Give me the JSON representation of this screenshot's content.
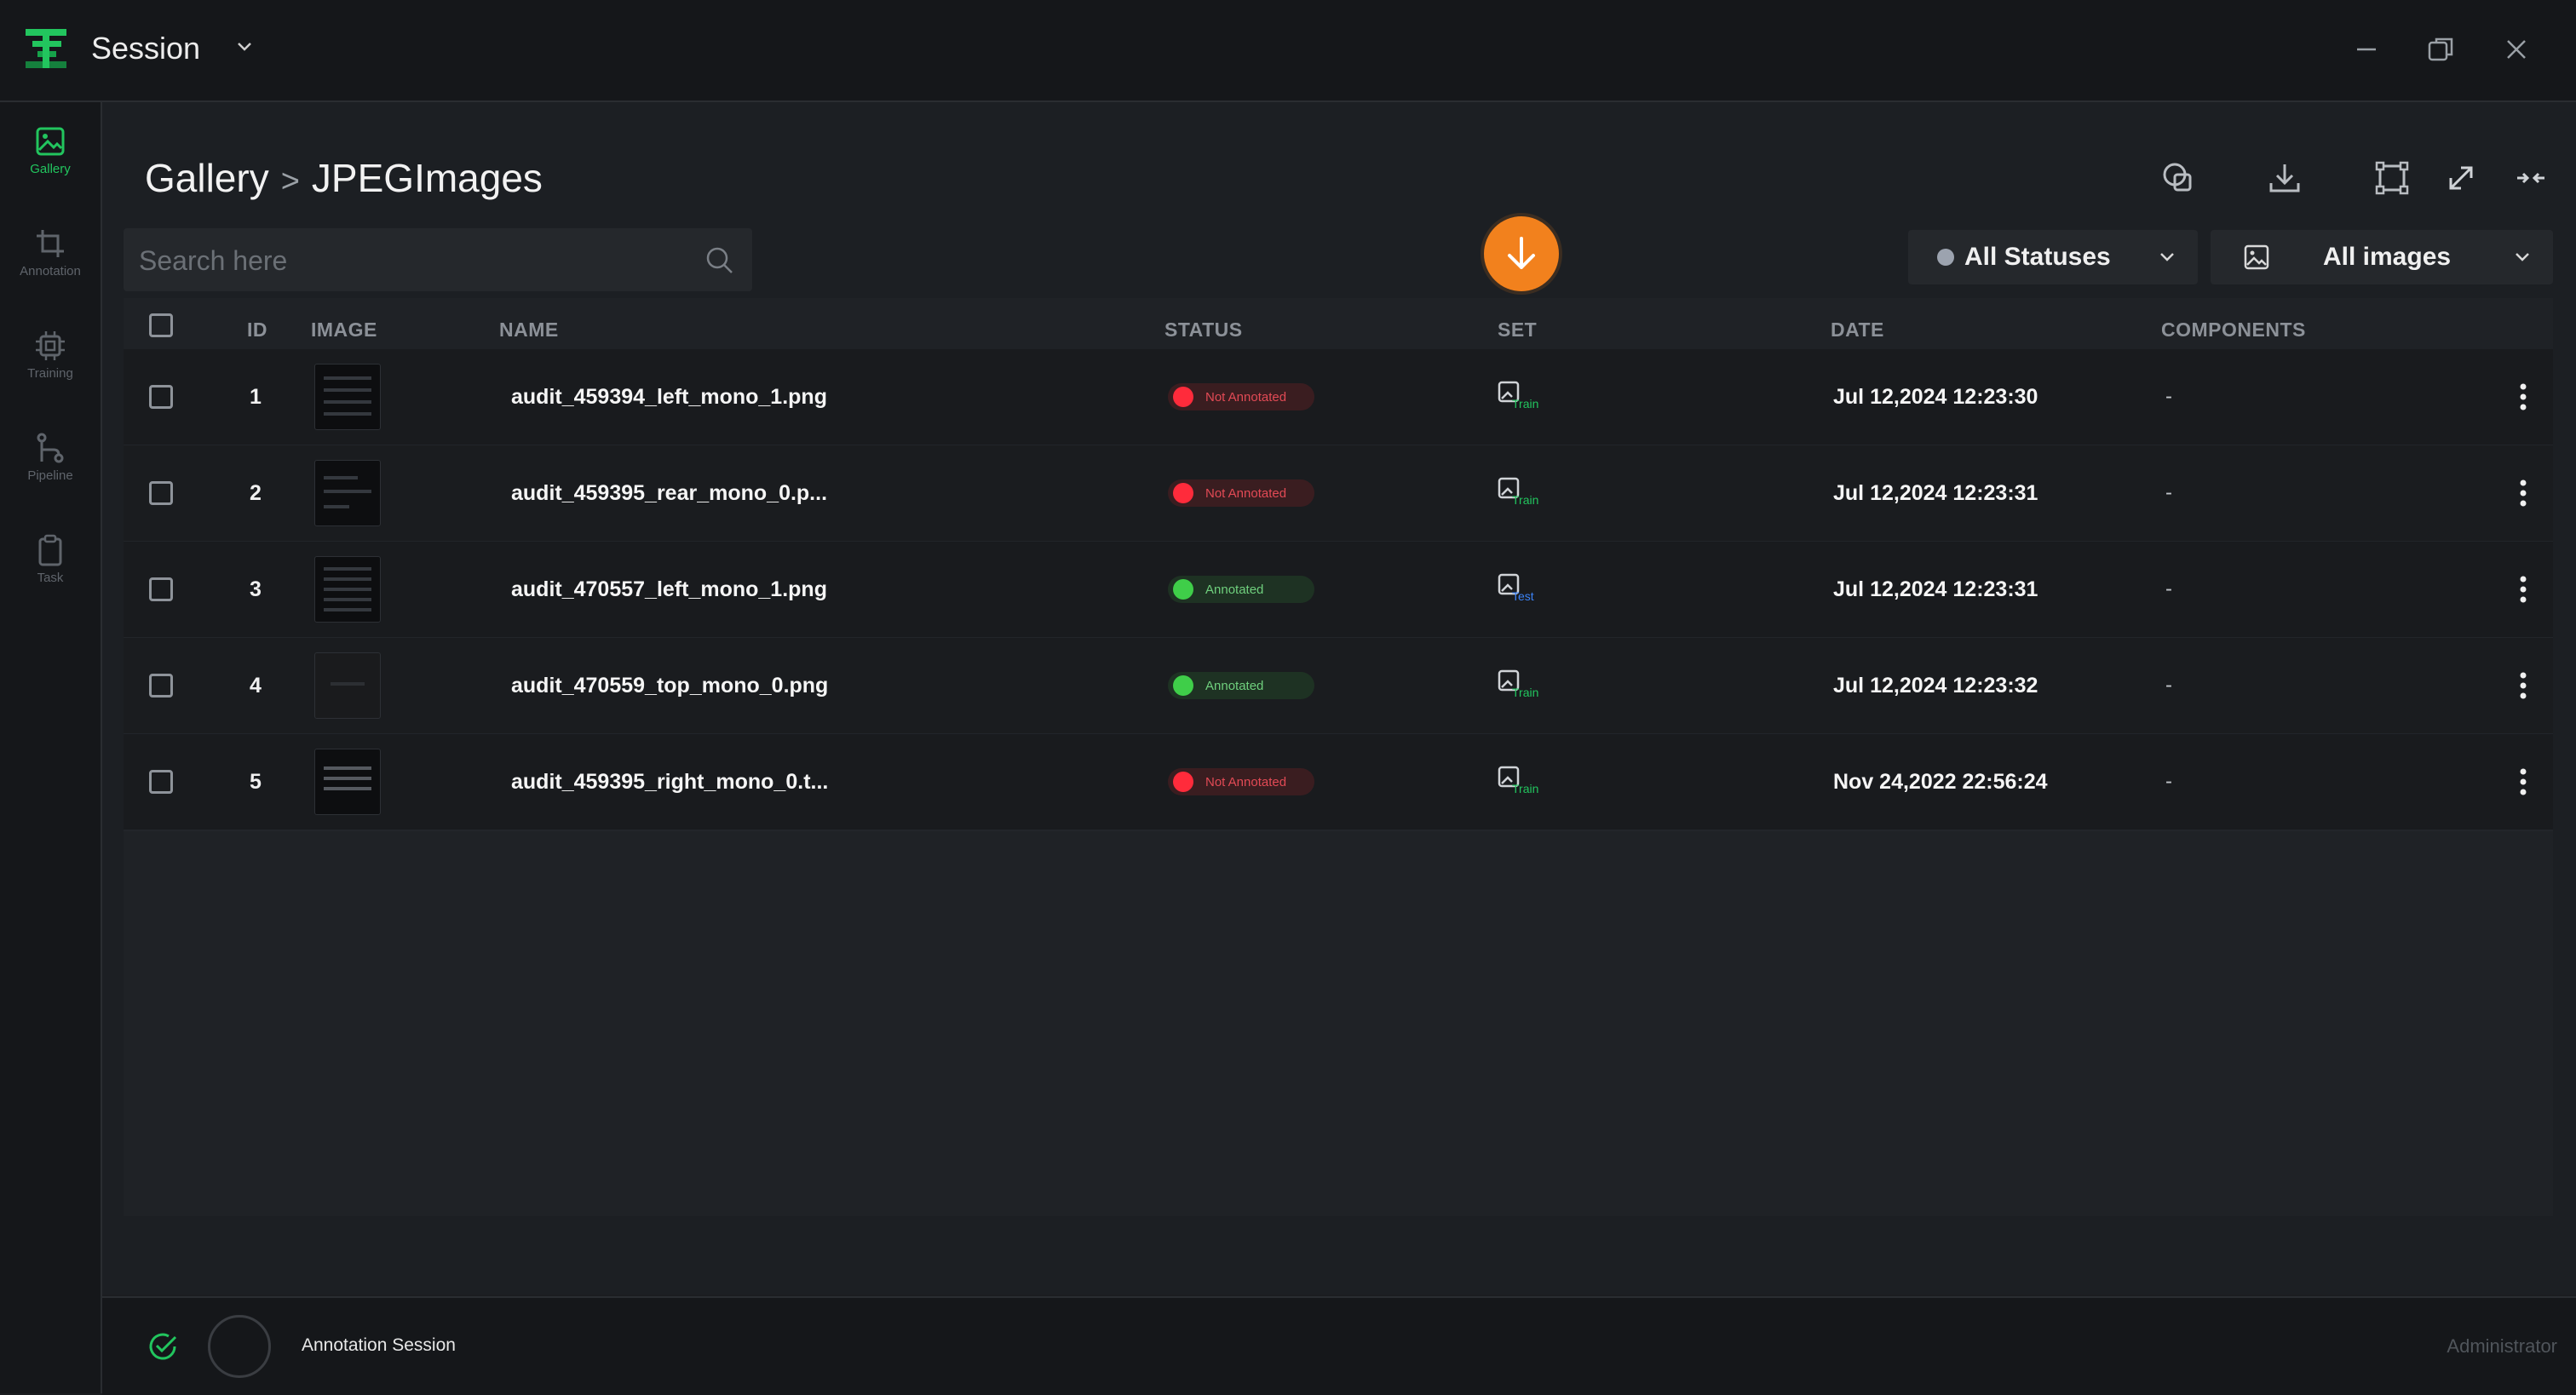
{
  "app": {
    "title": "Session",
    "brand_color": "#22c55e"
  },
  "sidebar": {
    "items": [
      {
        "label": "Gallery",
        "icon": "image-icon",
        "active": true
      },
      {
        "label": "Annotation",
        "icon": "crop-icon",
        "active": false
      },
      {
        "label": "Training",
        "icon": "chip-icon",
        "active": false
      },
      {
        "label": "Pipeline",
        "icon": "pipeline-icon",
        "active": false
      },
      {
        "label": "Task",
        "icon": "clipboard-icon",
        "active": false
      }
    ]
  },
  "breadcrumb": {
    "root": "Gallery",
    "separator": ">",
    "current": "JPEGImages"
  },
  "search": {
    "placeholder": "Search here",
    "value": ""
  },
  "filters": {
    "status": "All Statuses",
    "images": "All images"
  },
  "table": {
    "headers": [
      "ID",
      "IMAGE",
      "NAME",
      "STATUS",
      "SET",
      "DATE",
      "COMPONENTS"
    ],
    "rows": [
      {
        "id": "1",
        "name": "audit_459394_left_mono_1.png",
        "status": "Not Annotated",
        "set": "Train",
        "date": "Jul 12,2024 12:23:30",
        "components": "-"
      },
      {
        "id": "2",
        "name": "audit_459395_rear_mono_0.p...",
        "status": "Not Annotated",
        "set": "Train",
        "date": "Jul 12,2024 12:23:31",
        "components": "-"
      },
      {
        "id": "3",
        "name": "audit_470557_left_mono_1.png",
        "status": "Annotated",
        "set": "Test",
        "date": "Jul 12,2024 12:23:31",
        "components": "-"
      },
      {
        "id": "4",
        "name": "audit_470559_top_mono_0.png",
        "status": "Annotated",
        "set": "Train",
        "date": "Jul 12,2024 12:23:32",
        "components": "-"
      },
      {
        "id": "5",
        "name": "audit_459395_right_mono_0.t...",
        "status": "Not Annotated",
        "set": "Train",
        "date": "Nov 24,2022 22:56:24",
        "components": "-"
      }
    ]
  },
  "footer": {
    "session_label": "Annotation Session",
    "user": "Administrator"
  },
  "colors": {
    "not_annotated": "#ff2b3b",
    "annotated": "#3fce49",
    "train": "#22c55e",
    "test": "#3b82f6",
    "fab": "#f2811d"
  }
}
